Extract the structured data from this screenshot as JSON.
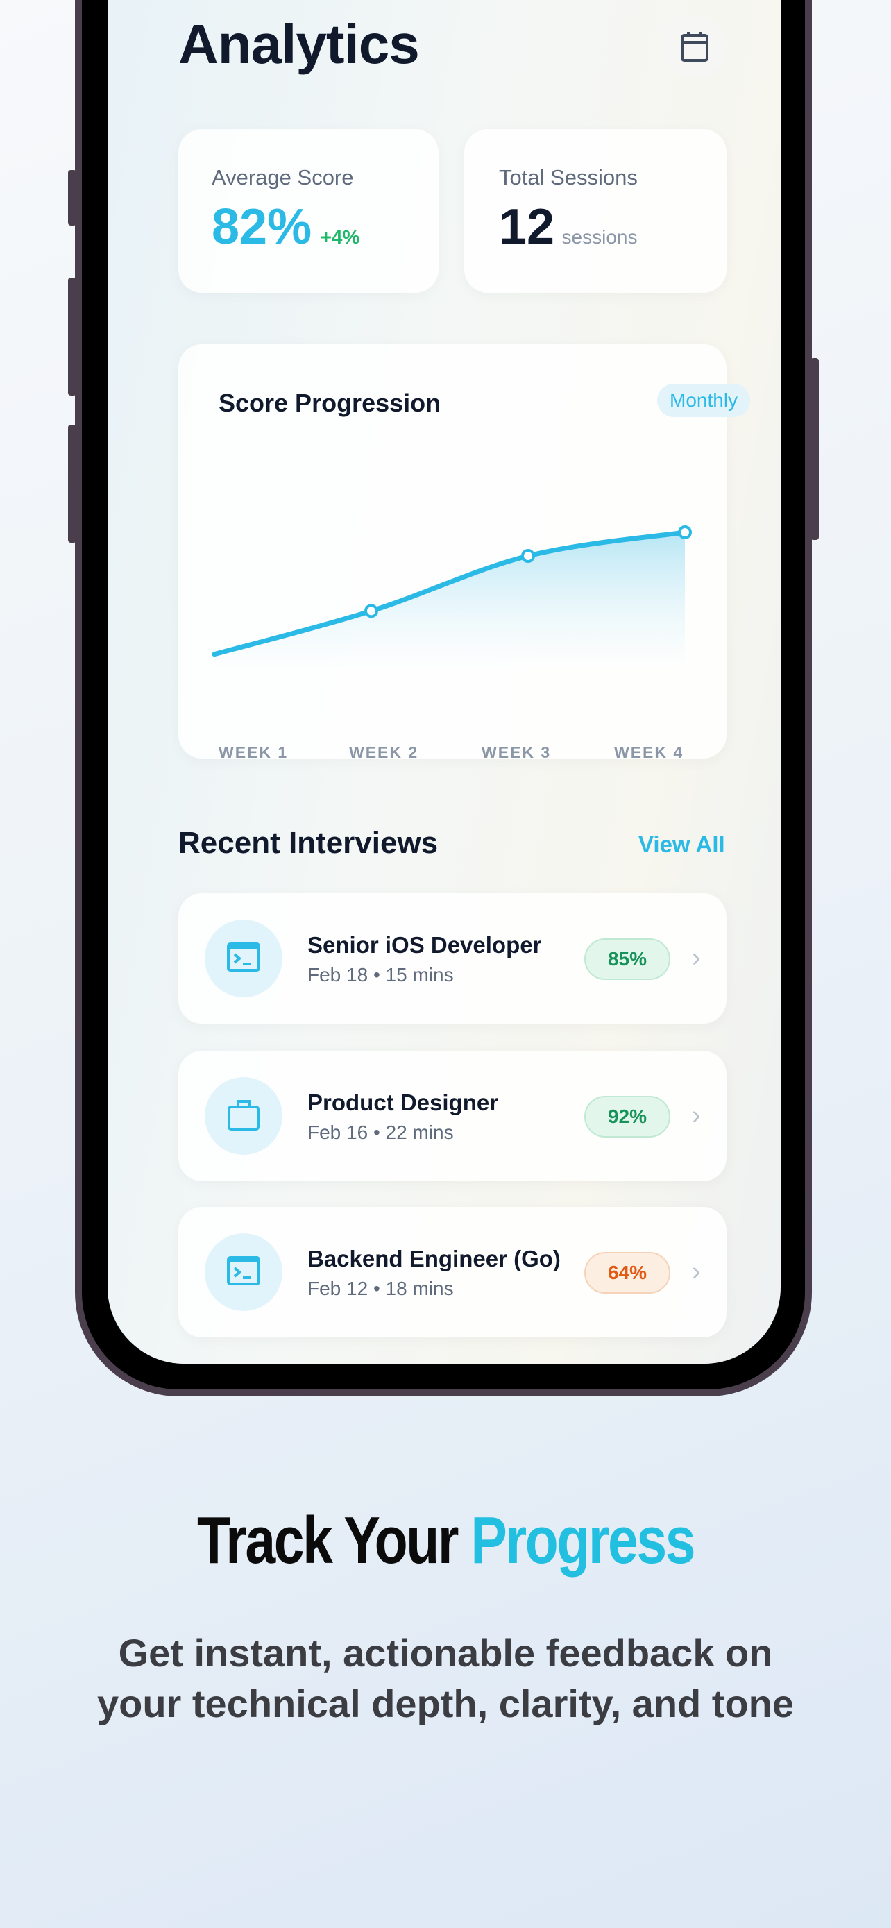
{
  "header": {
    "title": "Analytics",
    "calendar_icon": "calendar-icon"
  },
  "stats": {
    "average": {
      "label": "Average Score",
      "value": "82%",
      "delta": "+4%",
      "value_color": "#2bb9e6",
      "delta_color": "#1fb86a"
    },
    "sessions": {
      "label": "Total Sessions",
      "value": "12",
      "unit": "sessions"
    }
  },
  "chart_data": {
    "type": "area",
    "title": "Score Progression",
    "period": "Monthly",
    "categories": [
      "WEEK 1",
      "WEEK 2",
      "WEEK 3",
      "WEEK 4"
    ],
    "values": [
      60,
      71,
      85,
      91
    ],
    "grid": false,
    "color": "#2bb9e6"
  },
  "recent": {
    "title": "Recent Interviews",
    "view_all": "View All",
    "items": [
      {
        "name": "Senior iOS Developer",
        "meta": "Feb 18 • 15 mins",
        "score": "85%",
        "icon": "terminal-icon",
        "status": "good"
      },
      {
        "name": "Product Designer",
        "meta": "Feb 16 • 22 mins",
        "score": "92%",
        "icon": "briefcase-icon",
        "status": "good"
      },
      {
        "name": "Backend Engineer (Go)",
        "meta": "Feb 12 • 18 mins",
        "score": "64%",
        "icon": "terminal-icon",
        "status": "warn"
      }
    ]
  },
  "promo": {
    "headline_a": "Track Your ",
    "headline_b": "Progress",
    "accent": "#22bfe0",
    "line1": "Get instant, actionable feedback on",
    "line2": "your technical depth, clarity, and tone"
  }
}
